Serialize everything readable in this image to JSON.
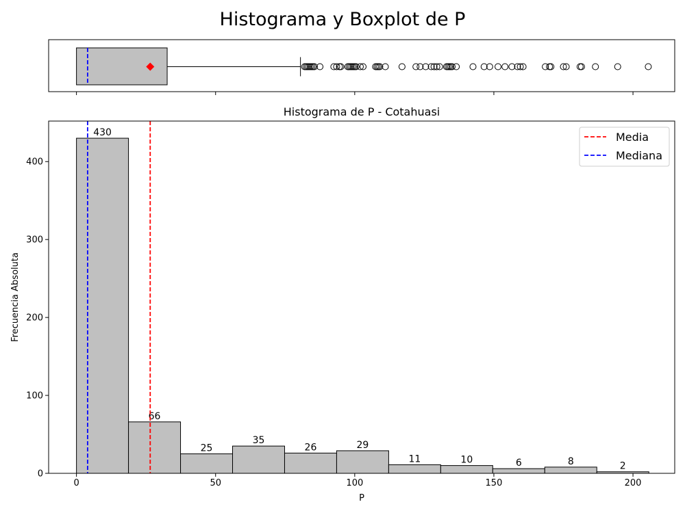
{
  "figure": {
    "suptitle": "Histograma y Boxplot de P"
  },
  "chart_data": [
    {
      "type": "boxplot",
      "orientation": "horizontal",
      "box": {
        "whisker_low": 0,
        "q1": 0,
        "median": 4,
        "mean": 26.5,
        "q3": 32.6,
        "whisker_high": 80.5
      },
      "outliers": [
        82,
        82.5,
        83,
        83.5,
        84,
        84.5,
        85,
        85.5,
        87.5,
        92.5,
        93.5,
        94.5,
        95,
        97.5,
        98,
        98.5,
        99,
        99.5,
        100,
        100.5,
        102,
        103,
        107.5,
        108,
        108.5,
        109,
        111,
        117,
        122,
        123.5,
        125.5,
        127.5,
        128.5,
        129.5,
        130.5,
        133,
        133.5,
        134,
        134.5,
        135,
        136.5,
        142.5,
        146.5,
        148.5,
        151.5,
        154,
        156.5,
        158.5,
        159.5,
        160.5,
        168.5,
        170,
        170.5,
        175,
        176,
        181,
        181.5,
        186.5,
        194.5,
        205.5
      ],
      "colors": {
        "box": "#c0c0c0",
        "median": "#0000ff",
        "mean_marker": "#ff0000"
      },
      "xlim": [
        -10,
        215
      ]
    },
    {
      "type": "bar",
      "title": "Histograma de P - Cotahuasi",
      "xlabel": "P",
      "ylabel": "Frecuencia Absoluta",
      "bin_edges": [
        0,
        18.7,
        37.4,
        56.1,
        74.8,
        93.5,
        112.2,
        130.9,
        149.6,
        168.3,
        187,
        205.7
      ],
      "values": [
        430,
        66,
        25,
        35,
        26,
        29,
        11,
        10,
        6,
        8,
        2
      ],
      "value_labels": [
        "430",
        "66",
        "25",
        "35",
        "26",
        "29",
        "11",
        "10",
        "6",
        "8",
        "2"
      ],
      "xlim": [
        -10,
        215
      ],
      "ylim": [
        0,
        452
      ],
      "xticks": [
        0,
        50,
        100,
        150,
        200
      ],
      "xtick_labels": [
        "0",
        "50",
        "100",
        "150",
        "200"
      ],
      "yticks": [
        0,
        100,
        200,
        300,
        400
      ],
      "ytick_labels": [
        "0",
        "100",
        "200",
        "300",
        "400"
      ],
      "reference_lines": [
        {
          "name": "Media",
          "value": 26.5,
          "color": "#ff0000"
        },
        {
          "name": "Mediana",
          "value": 4,
          "color": "#0000ff"
        }
      ],
      "legend": {
        "placement": "top-right",
        "entries": [
          "Media",
          "Mediana"
        ]
      },
      "bar_color": "#c0c0c0",
      "grid": false
    }
  ]
}
